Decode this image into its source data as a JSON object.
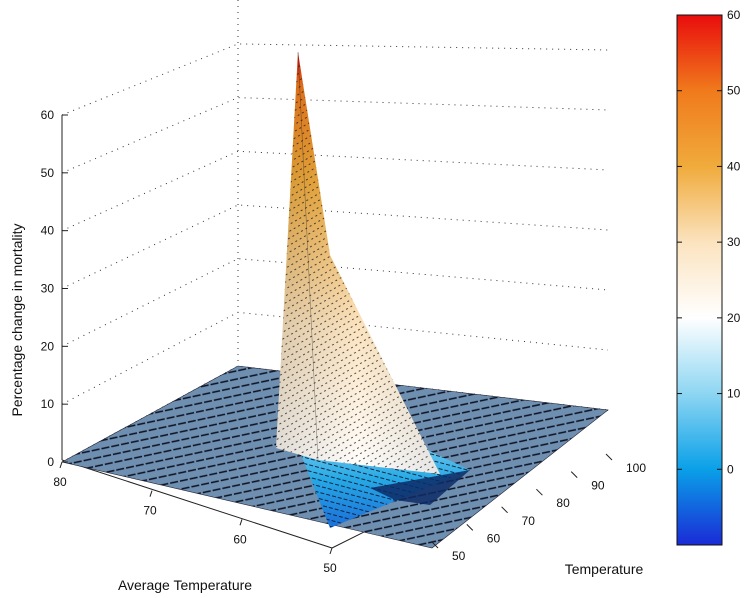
{
  "chart_data": {
    "type": "surface",
    "title": "",
    "xlabel": "Average Temperature",
    "ylabel": "Temperature",
    "zlabel": "Percentage change in mortality",
    "x_ticks": [
      "80",
      "70",
      "60",
      "50"
    ],
    "y_ticks": [
      "50",
      "60",
      "70",
      "80",
      "90",
      "100"
    ],
    "z_ticks": [
      "0",
      "10",
      "20",
      "30",
      "40",
      "50",
      "60"
    ],
    "xlim": [
      50,
      80
    ],
    "ylim": [
      50,
      100
    ],
    "zlim": [
      0,
      60
    ],
    "grid": true,
    "colormap": "jet-like (blue to red through white and orange)",
    "colorbar": {
      "ticks": [
        "0",
        "10",
        "20",
        "30",
        "40",
        "50",
        "60"
      ],
      "range": [
        -10,
        60
      ],
      "colors": [
        "#1a2bd6",
        "#0aa0e8",
        "#8ed6f2",
        "#ffffff",
        "#fbe3bf",
        "#f0ab3c",
        "#f07a1c",
        "#e90d0d"
      ]
    },
    "surface": {
      "baseline_z": 0,
      "peak": {
        "x": 60,
        "y": 50,
        "z": 60
      },
      "trough": {
        "x": 52,
        "y": 56,
        "z": -8
      },
      "description_of_shape": "flat at zero except a sharp ridge rising toward the low-temperature corner"
    }
  }
}
